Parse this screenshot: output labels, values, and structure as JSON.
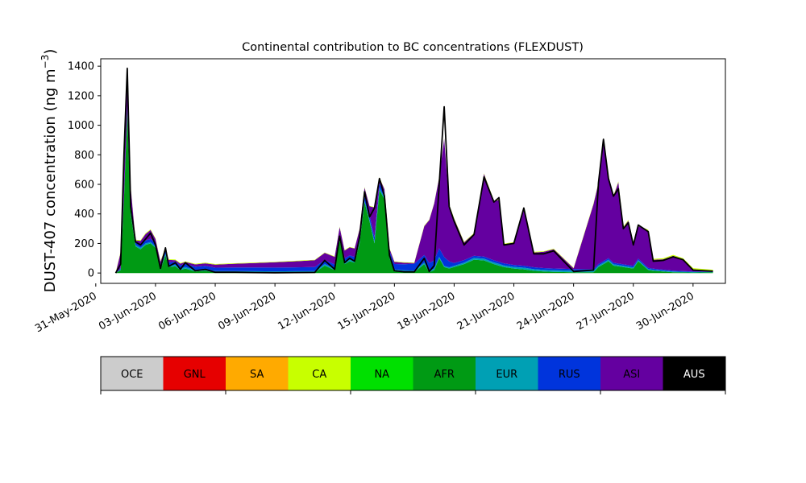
{
  "chart_data": {
    "type": "area",
    "title": "Continental contribution to BC concentrations (FLEXDUST)",
    "ylabel": "DUST-407 concentration (ng m",
    "ylabel_sup": "−3",
    "ylabel_close": ")",
    "xlabel": "",
    "ylim": [
      -70,
      1450
    ],
    "xlim": [
      "2020-05-31T06:00",
      "2020-07-01T15:00"
    ],
    "x_ticks": [
      "31-May-2020",
      "03-Jun-2020",
      "06-Jun-2020",
      "09-Jun-2020",
      "12-Jun-2020",
      "15-Jun-2020",
      "18-Jun-2020",
      "21-Jun-2020",
      "24-Jun-2020",
      "27-Jun-2020",
      "30-Jun-2020"
    ],
    "y_ticks": [
      0,
      200,
      400,
      600,
      800,
      1000,
      1200,
      1400
    ],
    "grid": false,
    "stacked": true,
    "series": [
      {
        "name": "AFR",
        "color": "#009a14",
        "points": [
          [
            "2020-06-01",
            0
          ],
          [
            "2020-06-01T06",
            20
          ],
          [
            "2020-06-01T10",
            500
          ],
          [
            "2020-06-01T14",
            1100
          ],
          [
            "2020-06-01T18",
            400
          ],
          [
            "2020-06-02",
            180
          ],
          [
            "2020-06-02T06",
            160
          ],
          [
            "2020-06-02T12",
            190
          ],
          [
            "2020-06-02T18",
            200
          ],
          [
            "2020-06-03",
            170
          ],
          [
            "2020-06-03T06",
            20
          ],
          [
            "2020-06-03T12",
            120
          ],
          [
            "2020-06-03T16",
            40
          ],
          [
            "2020-06-04",
            45
          ],
          [
            "2020-06-04T06",
            20
          ],
          [
            "2020-06-04T12",
            30
          ],
          [
            "2020-06-05",
            10
          ],
          [
            "2020-06-05T12",
            15
          ],
          [
            "2020-06-06",
            3
          ],
          [
            "2020-06-07",
            3
          ],
          [
            "2020-06-08",
            2
          ],
          [
            "2020-06-09",
            1
          ],
          [
            "2020-06-10",
            2
          ],
          [
            "2020-06-11",
            3
          ],
          [
            "2020-06-11T12",
            50
          ],
          [
            "2020-06-12",
            20
          ],
          [
            "2020-06-12T06",
            220
          ],
          [
            "2020-06-12T12",
            60
          ],
          [
            "2020-06-12T18",
            80
          ],
          [
            "2020-06-13",
            70
          ],
          [
            "2020-06-13T06",
            200
          ],
          [
            "2020-06-13T12",
            480
          ],
          [
            "2020-06-13T18",
            350
          ],
          [
            "2020-06-14",
            200
          ],
          [
            "2020-06-14T06",
            560
          ],
          [
            "2020-06-14T12",
            500
          ],
          [
            "2020-06-14T18",
            100
          ],
          [
            "2020-06-15",
            10
          ],
          [
            "2020-06-15T12",
            5
          ],
          [
            "2020-06-16",
            5
          ],
          [
            "2020-06-16T12",
            60
          ],
          [
            "2020-06-16T18",
            5
          ],
          [
            "2020-06-17",
            20
          ],
          [
            "2020-06-17T06",
            100
          ],
          [
            "2020-06-17T12",
            40
          ],
          [
            "2020-06-17T18",
            30
          ],
          [
            "2020-06-18",
            40
          ],
          [
            "2020-06-18T12",
            60
          ],
          [
            "2020-06-19",
            90
          ],
          [
            "2020-06-19T12",
            85
          ],
          [
            "2020-06-20",
            60
          ],
          [
            "2020-06-20T12",
            40
          ],
          [
            "2020-06-21",
            30
          ],
          [
            "2020-06-21T12",
            25
          ],
          [
            "2020-06-22",
            15
          ],
          [
            "2020-06-22T12",
            10
          ],
          [
            "2020-06-23",
            8
          ],
          [
            "2020-06-24",
            5
          ],
          [
            "2020-06-25",
            5
          ],
          [
            "2020-06-25T06",
            40
          ],
          [
            "2020-06-25T18",
            80
          ],
          [
            "2020-06-26",
            50
          ],
          [
            "2020-06-26T12",
            40
          ],
          [
            "2020-06-27",
            30
          ],
          [
            "2020-06-27T06",
            80
          ],
          [
            "2020-06-27T18",
            20
          ],
          [
            "2020-06-28",
            15
          ],
          [
            "2020-06-28T12",
            10
          ],
          [
            "2020-06-29",
            5
          ],
          [
            "2020-06-30",
            3
          ],
          [
            "2020-07-01",
            5
          ]
        ]
      },
      {
        "name": "EUR",
        "color": "#00a0b4",
        "points": [
          [
            "2020-06-01",
            0
          ],
          [
            "2020-06-01T14",
            10
          ],
          [
            "2020-06-13T12",
            10
          ],
          [
            "2020-06-14T06",
            15
          ],
          [
            "2020-06-18",
            8
          ],
          [
            "2020-06-19",
            12
          ],
          [
            "2020-06-25T18",
            10
          ],
          [
            "2020-06-27",
            8
          ],
          [
            "2020-07-01",
            2
          ]
        ]
      },
      {
        "name": "RUS",
        "color": "#0034dc",
        "points": [
          [
            "2020-06-01",
            0
          ],
          [
            "2020-06-01T14",
            20
          ],
          [
            "2020-06-14T06",
            30
          ],
          [
            "2020-06-17T12",
            60
          ],
          [
            "2020-06-18",
            20
          ],
          [
            "2020-06-19",
            15
          ],
          [
            "2020-06-25T18",
            10
          ],
          [
            "2020-06-27",
            10
          ],
          [
            "2020-07-01",
            2
          ]
        ]
      },
      {
        "name": "ASI",
        "color": "#6400a0",
        "points": [
          [
            "2020-06-01",
            0
          ],
          [
            "2020-06-01T14",
            250
          ],
          [
            "2020-06-02",
            10
          ],
          [
            "2020-06-02T18",
            60
          ],
          [
            "2020-06-03",
            30
          ],
          [
            "2020-06-04",
            10
          ],
          [
            "2020-06-13T18",
            60
          ],
          [
            "2020-06-14",
            200
          ],
          [
            "2020-06-14T06",
            40
          ],
          [
            "2020-06-14T12",
            20
          ],
          [
            "2020-06-16",
            5
          ],
          [
            "2020-06-17T06",
            480
          ],
          [
            "2020-06-17T12",
            800
          ],
          [
            "2020-06-17T18",
            380
          ],
          [
            "2020-06-18",
            300
          ],
          [
            "2020-06-18T12",
            120
          ],
          [
            "2020-06-19",
            150
          ],
          [
            "2020-06-19T12",
            560
          ],
          [
            "2020-06-20",
            400
          ],
          [
            "2020-06-20T06",
            420
          ],
          [
            "2020-06-20T12",
            130
          ],
          [
            "2020-06-21",
            150
          ],
          [
            "2020-06-21T12",
            380
          ],
          [
            "2020-06-22",
            100
          ],
          [
            "2020-06-22T12",
            110
          ],
          [
            "2020-06-23",
            130
          ],
          [
            "2020-06-24",
            5
          ],
          [
            "2020-06-25T06",
            550
          ],
          [
            "2020-06-25T12",
            820
          ],
          [
            "2020-06-25T18",
            550
          ],
          [
            "2020-06-26",
            450
          ],
          [
            "2020-06-26T06",
            550
          ],
          [
            "2020-06-26T12",
            250
          ],
          [
            "2020-06-26T18",
            300
          ],
          [
            "2020-06-27",
            150
          ],
          [
            "2020-06-27T06",
            220
          ],
          [
            "2020-06-27T18",
            250
          ],
          [
            "2020-06-28",
            60
          ],
          [
            "2020-06-28T12",
            70
          ],
          [
            "2020-06-29",
            100
          ],
          [
            "2020-06-29T12",
            80
          ],
          [
            "2020-06-30",
            15
          ],
          [
            "2020-07-01",
            5
          ]
        ]
      },
      {
        "name": "CA",
        "color": "#c8ff00",
        "points": [
          [
            "2020-06-01",
            5
          ],
          [
            "2020-06-10",
            3
          ],
          [
            "2020-06-24",
            4
          ],
          [
            "2020-07-01",
            8
          ]
        ]
      }
    ],
    "total": {
      "name": "total",
      "color": "#000000",
      "points": [
        [
          "2020-06-01",
          0
        ],
        [
          "2020-06-01T06",
          60
        ],
        [
          "2020-06-01T10",
          800
        ],
        [
          "2020-06-01T14",
          1385
        ],
        [
          "2020-06-01T18",
          450
        ],
        [
          "2020-06-02",
          210
        ],
        [
          "2020-06-02T06",
          190
        ],
        [
          "2020-06-02T12",
          230
        ],
        [
          "2020-06-02T18",
          270
        ],
        [
          "2020-06-03",
          190
        ],
        [
          "2020-06-03T06",
          30
        ],
        [
          "2020-06-03T12",
          170
        ],
        [
          "2020-06-03T16",
          45
        ],
        [
          "2020-06-04",
          70
        ],
        [
          "2020-06-04T06",
          25
        ],
        [
          "2020-06-04T12",
          70
        ],
        [
          "2020-06-05",
          15
        ],
        [
          "2020-06-05T12",
          25
        ],
        [
          "2020-06-06",
          5
        ],
        [
          "2020-06-07",
          5
        ],
        [
          "2020-06-08",
          3
        ],
        [
          "2020-06-09",
          2
        ],
        [
          "2020-06-10",
          3
        ],
        [
          "2020-06-11",
          4
        ],
        [
          "2020-06-11T12",
          85
        ],
        [
          "2020-06-12",
          25
        ],
        [
          "2020-06-12T06",
          250
        ],
        [
          "2020-06-12T12",
          70
        ],
        [
          "2020-06-12T18",
          100
        ],
        [
          "2020-06-13",
          80
        ],
        [
          "2020-06-13T06",
          240
        ],
        [
          "2020-06-13T12",
          550
        ],
        [
          "2020-06-13T18",
          380
        ],
        [
          "2020-06-14",
          440
        ],
        [
          "2020-06-14T06",
          640
        ],
        [
          "2020-06-14T12",
          520
        ],
        [
          "2020-06-14T18",
          120
        ],
        [
          "2020-06-15",
          15
        ],
        [
          "2020-06-15T12",
          8
        ],
        [
          "2020-06-16",
          8
        ],
        [
          "2020-06-16T12",
          100
        ],
        [
          "2020-06-16T18",
          10
        ],
        [
          "2020-06-17",
          50
        ],
        [
          "2020-06-17T06",
          600
        ],
        [
          "2020-06-17T12",
          1125
        ],
        [
          "2020-06-17T18",
          450
        ],
        [
          "2020-06-18",
          350
        ],
        [
          "2020-06-18T12",
          190
        ],
        [
          "2020-06-19",
          260
        ],
        [
          "2020-06-19T12",
          650
        ],
        [
          "2020-06-20",
          480
        ],
        [
          "2020-06-20T06",
          510
        ],
        [
          "2020-06-20T12",
          190
        ],
        [
          "2020-06-21",
          200
        ],
        [
          "2020-06-21T12",
          440
        ],
        [
          "2020-06-22",
          130
        ],
        [
          "2020-06-22T12",
          130
        ],
        [
          "2020-06-23",
          150
        ],
        [
          "2020-06-24",
          10
        ],
        [
          "2020-06-25",
          20
        ],
        [
          "2020-06-25T06",
          610
        ],
        [
          "2020-06-25T12",
          905
        ],
        [
          "2020-06-25T18",
          640
        ],
        [
          "2020-06-26",
          520
        ],
        [
          "2020-06-26T06",
          570
        ],
        [
          "2020-06-26T12",
          300
        ],
        [
          "2020-06-26T18",
          340
        ],
        [
          "2020-06-27",
          190
        ],
        [
          "2020-06-27T06",
          325
        ],
        [
          "2020-06-27T18",
          280
        ],
        [
          "2020-06-28",
          80
        ],
        [
          "2020-06-28T12",
          85
        ],
        [
          "2020-06-29",
          110
        ],
        [
          "2020-06-29T12",
          90
        ],
        [
          "2020-06-30",
          20
        ],
        [
          "2020-07-01",
          12
        ]
      ]
    },
    "legend": [
      {
        "name": "OCE",
        "color": "#cccccc",
        "text_color": "#000000"
      },
      {
        "name": "GNL",
        "color": "#e60000",
        "text_color": "#000000"
      },
      {
        "name": "SA",
        "color": "#ffaa00",
        "text_color": "#000000"
      },
      {
        "name": "CA",
        "color": "#c8ff00",
        "text_color": "#000000"
      },
      {
        "name": "NA",
        "color": "#00e000",
        "text_color": "#000000"
      },
      {
        "name": "AFR",
        "color": "#009a14",
        "text_color": "#000000"
      },
      {
        "name": "EUR",
        "color": "#00a0b4",
        "text_color": "#000000"
      },
      {
        "name": "RUS",
        "color": "#0034dc",
        "text_color": "#000000"
      },
      {
        "name": "ASI",
        "color": "#6400a0",
        "text_color": "#000000"
      },
      {
        "name": "AUS",
        "color": "#000000",
        "text_color": "#ffffff"
      }
    ],
    "legend_placement": "bottom"
  }
}
